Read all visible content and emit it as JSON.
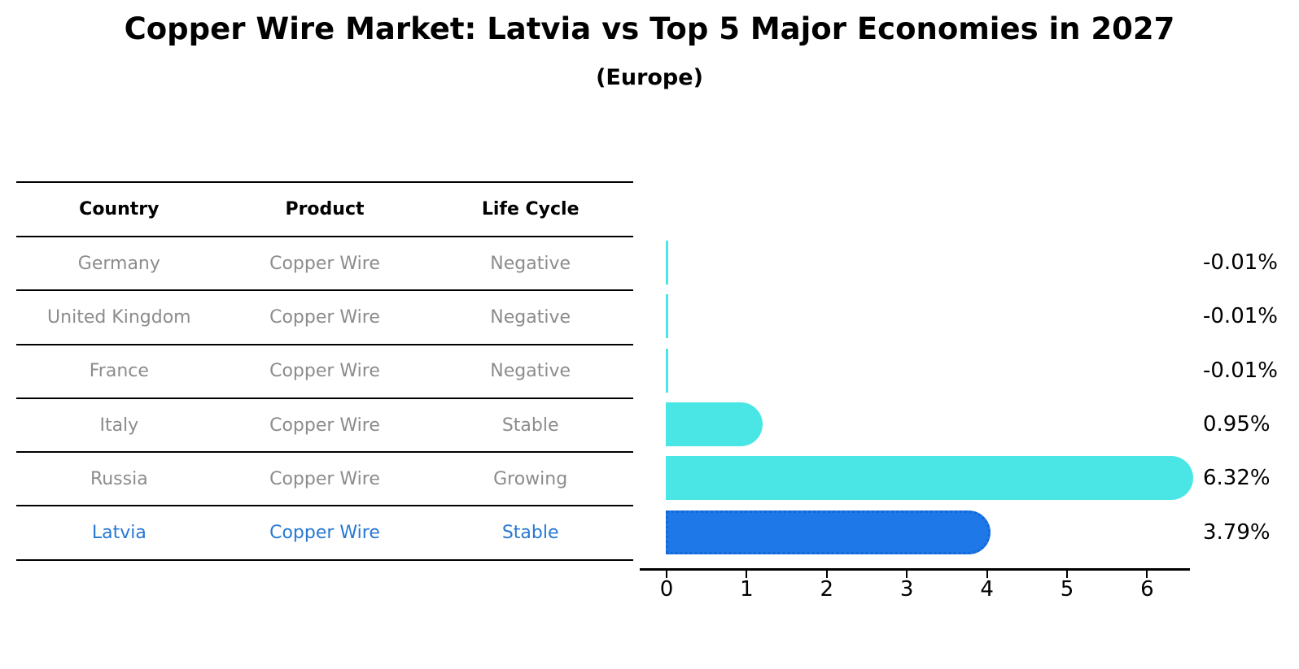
{
  "header": {
    "title": "Copper Wire Market: Latvia vs Top 5 Major Economies in 2027",
    "subtitle": "(Europe)"
  },
  "table": {
    "columns": [
      "Country",
      "Product",
      "Life Cycle"
    ],
    "rows": [
      {
        "country": "Germany",
        "product": "Copper Wire",
        "life_cycle": "Negative",
        "highlight": false
      },
      {
        "country": "United Kingdom",
        "product": "Copper Wire",
        "life_cycle": "Negative",
        "highlight": false
      },
      {
        "country": "France",
        "product": "Copper Wire",
        "life_cycle": "Negative",
        "highlight": false
      },
      {
        "country": "Italy",
        "product": "Copper Wire",
        "life_cycle": "Stable",
        "highlight": false
      },
      {
        "country": "Russia",
        "product": "Copper Wire",
        "life_cycle": "Growing",
        "highlight": false
      },
      {
        "country": "Latvia",
        "product": "Copper Wire",
        "life_cycle": "Stable",
        "highlight": true
      }
    ]
  },
  "chart_data": {
    "type": "bar",
    "orientation": "horizontal",
    "title": "Copper Wire Market: Latvia vs Top 5 Major Economies in 2027 (Europe)",
    "categories": [
      "Germany",
      "United Kingdom",
      "France",
      "Italy",
      "Russia",
      "Latvia"
    ],
    "values": [
      -0.01,
      -0.01,
      -0.01,
      0.95,
      6.32,
      3.79
    ],
    "value_labels": [
      "-0.01%",
      "-0.01%",
      "-0.01%",
      "0.95%",
      "6.32%",
      "3.79%"
    ],
    "unit": "%",
    "xticks": [
      0,
      1,
      2,
      3,
      4,
      5,
      6
    ],
    "xlim": [
      0,
      6.6
    ],
    "grid": false,
    "legend": false,
    "highlight_index": 5
  },
  "colors": {
    "bar_default": "#4ae5e5",
    "bar_highlight": "#1e78e8",
    "highlight_border": "#1467d8",
    "highlight_text": "#2878d2",
    "table_text": "#8c8c8c",
    "axis": "#000000"
  }
}
